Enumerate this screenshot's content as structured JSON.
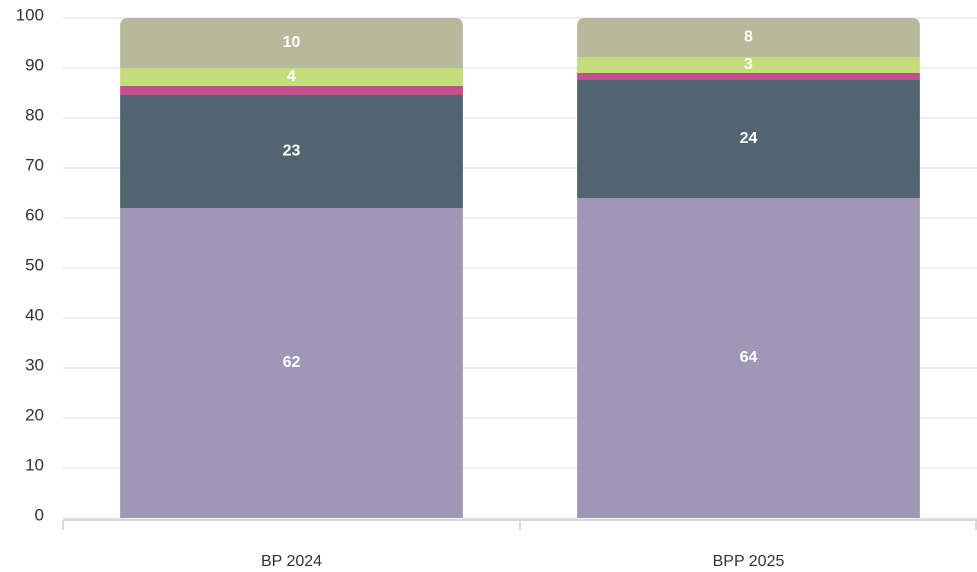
{
  "chart_data": {
    "type": "stacked_bar",
    "categories": [
      "BP 2024",
      "BPP 2025"
    ],
    "series": [
      {
        "color": "#9e97b6",
        "values": [
          62,
          64
        ],
        "value_labels": [
          "62",
          "64"
        ]
      },
      {
        "color": "#52646f",
        "values": [
          22.6,
          23.6
        ],
        "value_labels": [
          "23",
          "24"
        ]
      },
      {
        "color": "#c2508f",
        "values": [
          1.8,
          1.4
        ],
        "value_labels": [
          null,
          null
        ]
      },
      {
        "color": "#c4dc7c",
        "values": [
          3.6,
          3.2
        ],
        "value_labels": [
          "4",
          "3"
        ]
      },
      {
        "color": "#b8b89c",
        "values": [
          10,
          7.8
        ],
        "value_labels": [
          "10",
          "8"
        ]
      }
    ],
    "ylim": [
      0,
      100
    ],
    "yticks": [
      0,
      10,
      20,
      30,
      40,
      50,
      60,
      70,
      80,
      90,
      100
    ],
    "grid": true
  }
}
